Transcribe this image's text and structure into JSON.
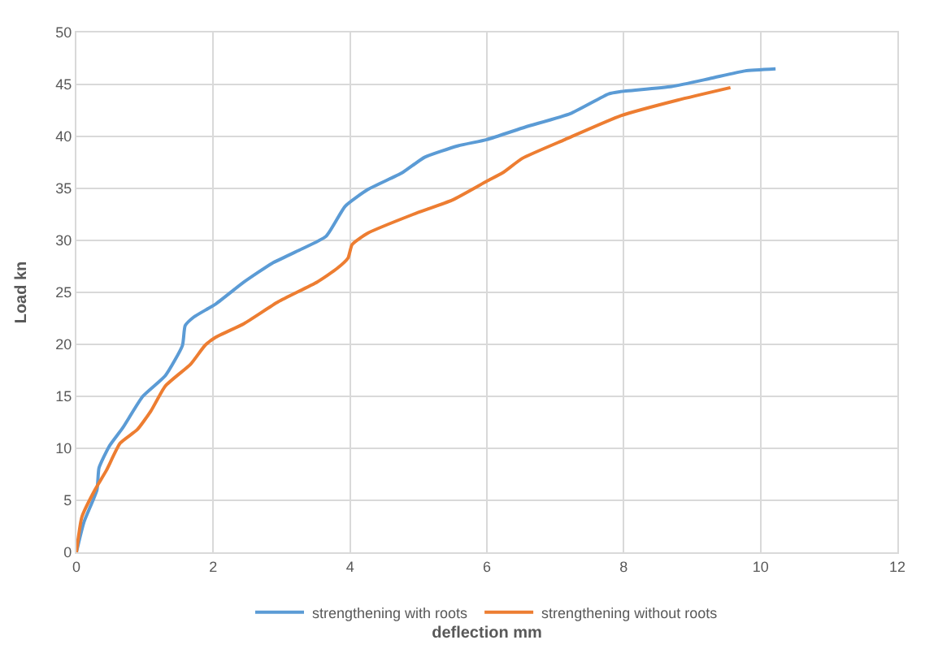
{
  "chart_data": {
    "type": "line",
    "xlabel": "deflection mm",
    "ylabel": "Load kn",
    "xlim": [
      0,
      12
    ],
    "xticks": [
      0,
      2,
      4,
      6,
      8,
      10,
      12
    ],
    "ylim": [
      0,
      50
    ],
    "yticks": [
      0,
      5,
      10,
      15,
      20,
      25,
      30,
      35,
      40,
      45,
      50
    ],
    "grid": true,
    "legend": "bottom",
    "marker": "none",
    "line_style": "solid",
    "series": [
      {
        "name": "strengthening with roots",
        "color": "#5b9bd5",
        "x": [
          0,
          0.11,
          0.3,
          0.33,
          0.48,
          0.68,
          0.97,
          1.3,
          1.55,
          1.59,
          1.71,
          2.04,
          2.45,
          2.86,
          3.27,
          3.65,
          3.93,
          4.26,
          4.76,
          5.09,
          5.58,
          6.0,
          6.56,
          7.22,
          7.78,
          7.94,
          8.7,
          9.28,
          9.77,
          10.22
        ],
        "values": [
          0,
          2.9,
          6,
          8.1,
          10.2,
          12,
          15,
          17,
          19.9,
          21.8,
          22.6,
          23.9,
          26,
          27.8,
          29.1,
          30.4,
          33.3,
          34.9,
          36.5,
          38,
          39.1,
          39.7,
          40.9,
          42.2,
          44.1,
          44.3,
          44.8,
          45.6,
          46.3,
          46.5
        ]
      },
      {
        "name": "strengthening without roots",
        "color": "#ed7d31",
        "x": [
          0,
          0.08,
          0.27,
          0.44,
          0.64,
          0.89,
          1.09,
          1.3,
          1.67,
          1.88,
          2.04,
          2.45,
          2.95,
          3.52,
          3.81,
          3.97,
          4.03,
          4.26,
          4.92,
          5.5,
          6.0,
          6.23,
          6.52,
          7.14,
          7.96,
          8.79,
          9.56
        ],
        "values": [
          0,
          3.4,
          6,
          7.9,
          10.5,
          11.8,
          13.6,
          16,
          18.1,
          19.9,
          20.7,
          22,
          24.1,
          26,
          27.3,
          28.3,
          29.6,
          30.7,
          32.5,
          33.9,
          35.7,
          36.5,
          37.9,
          39.7,
          42,
          43.5,
          44.7
        ]
      }
    ]
  }
}
